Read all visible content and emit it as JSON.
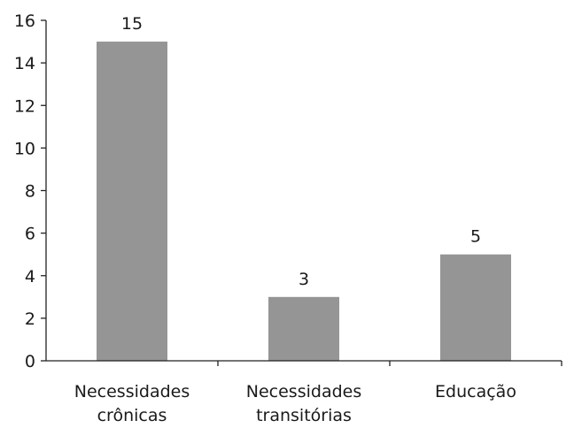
{
  "chart_data": {
    "type": "bar",
    "categories": [
      [
        "Necessidades",
        "crônicas"
      ],
      [
        "Necessidades",
        "transitórias"
      ],
      [
        "Educação"
      ]
    ],
    "values": [
      15,
      3,
      5
    ],
    "data_labels": [
      "15",
      "3",
      "5"
    ],
    "ylim": [
      0,
      16
    ],
    "yticks": [
      0,
      2,
      4,
      6,
      8,
      10,
      12,
      14,
      16
    ],
    "title": "",
    "xlabel": "",
    "ylabel": "",
    "grid": false,
    "legend": "none",
    "colors": {
      "bar": "#959595",
      "axis": "#222222",
      "text": "#1a1a1a"
    }
  }
}
